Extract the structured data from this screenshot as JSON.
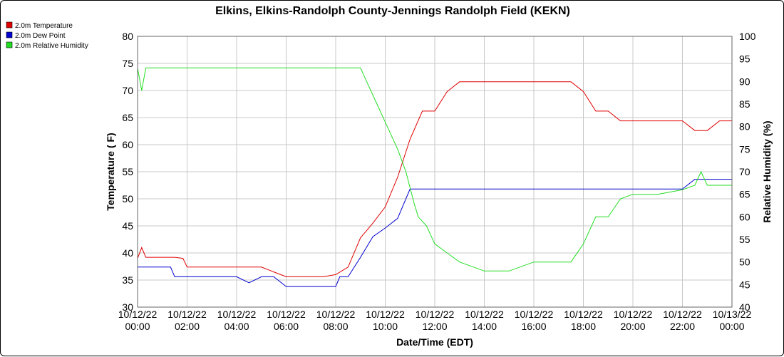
{
  "chart_data": {
    "type": "line",
    "title": "Elkins, Elkins-Randolph County-Jennings Randolph Field (KEKN)",
    "xlabel": "Date/Time (EDT)",
    "ylabel_left": "Temperature ( F)",
    "ylabel_right": "Relative Humidity (%)",
    "xlim": [
      "10/12/22 00:00",
      "10/13/22 00:00"
    ],
    "ylim_left": [
      30,
      80
    ],
    "ylim_right": [
      40,
      100
    ],
    "grid": true,
    "legend_position": "top-left",
    "x_ticks": [
      {
        "date": "10/12/22",
        "time": "00:00"
      },
      {
        "date": "10/12/22",
        "time": "02:00"
      },
      {
        "date": "10/12/22",
        "time": "04:00"
      },
      {
        "date": "10/12/22",
        "time": "06:00"
      },
      {
        "date": "10/12/22",
        "time": "08:00"
      },
      {
        "date": "10/12/22",
        "time": "10:00"
      },
      {
        "date": "10/12/22",
        "time": "12:00"
      },
      {
        "date": "10/12/22",
        "time": "14:00"
      },
      {
        "date": "10/12/22",
        "time": "16:00"
      },
      {
        "date": "10/12/22",
        "time": "18:00"
      },
      {
        "date": "10/12/22",
        "time": "20:00"
      },
      {
        "date": "10/12/22",
        "time": "22:00"
      },
      {
        "date": "10/13/22",
        "time": "00:00"
      }
    ],
    "y_ticks_left": [
      "30",
      "35",
      "40",
      "45",
      "50",
      "55",
      "60",
      "65",
      "70",
      "75",
      "80"
    ],
    "y_ticks_right": [
      "40",
      "45",
      "50",
      "55",
      "60",
      "65",
      "70",
      "75",
      "80",
      "85",
      "90",
      "95",
      "100"
    ],
    "series": [
      {
        "name": "2.0m Temperature",
        "color": "#e00000",
        "axis": "left",
        "x": [
          "10/12/22 00:00",
          "10/12/22 00:10",
          "10/12/22 00:20",
          "10/12/22 00:30",
          "10/12/22 01:00",
          "10/12/22 01:30",
          "10/12/22 01:50",
          "10/12/22 02:00",
          "10/12/22 03:00",
          "10/12/22 04:00",
          "10/12/22 05:00",
          "10/12/22 05:30",
          "10/12/22 06:00",
          "10/12/22 07:00",
          "10/12/22 07:30",
          "10/12/22 08:00",
          "10/12/22 08:30",
          "10/12/22 09:00",
          "10/12/22 09:30",
          "10/12/22 10:00",
          "10/12/22 10:30",
          "10/12/22 11:00",
          "10/12/22 11:30",
          "10/12/22 12:00",
          "10/12/22 12:30",
          "10/12/22 13:00",
          "10/12/22 14:00",
          "10/12/22 15:00",
          "10/12/22 16:00",
          "10/12/22 17:00",
          "10/12/22 17:30",
          "10/12/22 18:00",
          "10/12/22 18:30",
          "10/12/22 19:00",
          "10/12/22 19:30",
          "10/12/22 20:00",
          "10/12/22 21:00",
          "10/12/22 22:00",
          "10/12/22 22:30",
          "10/12/22 23:00",
          "10/12/22 23:30",
          "10/13/22 00:00"
        ],
        "y": [
          39.0,
          41.0,
          39.2,
          39.2,
          39.2,
          39.2,
          39.0,
          37.4,
          37.4,
          37.4,
          37.4,
          36.5,
          35.6,
          35.6,
          35.6,
          36.0,
          37.4,
          42.8,
          45.5,
          48.5,
          54.0,
          61.0,
          66.2,
          66.2,
          69.8,
          71.6,
          71.6,
          71.6,
          71.6,
          71.6,
          71.6,
          69.8,
          66.2,
          66.2,
          64.4,
          64.4,
          64.4,
          64.4,
          62.6,
          62.6,
          64.4,
          64.4
        ]
      },
      {
        "name": "2.0m Dew Point",
        "color": "#0000d0",
        "axis": "left",
        "x": [
          "10/12/22 00:00",
          "10/12/22 01:00",
          "10/12/22 01:20",
          "10/12/22 01:30",
          "10/12/22 02:00",
          "10/12/22 03:00",
          "10/12/22 04:00",
          "10/12/22 04:30",
          "10/12/22 05:00",
          "10/12/22 05:30",
          "10/12/22 06:00",
          "10/12/22 07:00",
          "10/12/22 08:00",
          "10/12/22 08:10",
          "10/12/22 08:30",
          "10/12/22 09:00",
          "10/12/22 09:30",
          "10/12/22 10:00",
          "10/12/22 10:30",
          "10/12/22 11:00",
          "10/12/22 11:30",
          "10/12/22 12:00",
          "10/12/22 13:00",
          "10/12/22 14:00",
          "10/12/22 15:00",
          "10/12/22 16:00",
          "10/12/22 17:00",
          "10/12/22 18:00",
          "10/12/22 19:00",
          "10/12/22 20:00",
          "10/12/22 21:00",
          "10/12/22 22:00",
          "10/12/22 22:30",
          "10/12/22 23:00",
          "10/13/22 00:00"
        ],
        "y": [
          37.4,
          37.4,
          37.4,
          35.6,
          35.6,
          35.6,
          35.6,
          34.5,
          35.6,
          35.6,
          33.8,
          33.8,
          33.8,
          35.6,
          35.6,
          39.2,
          43.0,
          44.6,
          46.4,
          51.8,
          51.8,
          51.8,
          51.8,
          51.8,
          51.8,
          51.8,
          51.8,
          51.8,
          51.8,
          51.8,
          51.8,
          51.8,
          53.6,
          53.6,
          53.6
        ]
      },
      {
        "name": "2.0m Relative Humidity",
        "color": "#22dd22",
        "axis": "right",
        "x": [
          "10/12/22 00:00",
          "10/12/22 00:10",
          "10/12/22 00:20",
          "10/12/22 01:00",
          "10/12/22 02:00",
          "10/12/22 04:00",
          "10/12/22 06:00",
          "10/12/22 08:00",
          "10/12/22 09:00",
          "10/12/22 09:20",
          "10/12/22 09:40",
          "10/12/22 10:00",
          "10/12/22 10:30",
          "10/12/22 10:50",
          "10/12/22 11:10",
          "10/12/22 11:20",
          "10/12/22 11:40",
          "10/12/22 12:00",
          "10/12/22 12:30",
          "10/12/22 13:00",
          "10/12/22 14:00",
          "10/12/22 15:00",
          "10/12/22 16:00",
          "10/12/22 17:00",
          "10/12/22 17:30",
          "10/12/22 18:00",
          "10/12/22 18:30",
          "10/12/22 19:00",
          "10/12/22 19:30",
          "10/12/22 20:00",
          "10/12/22 21:00",
          "10/12/22 22:00",
          "10/12/22 22:30",
          "10/12/22 22:45",
          "10/12/22 23:00",
          "10/13/22 00:00"
        ],
        "y": [
          93.0,
          88.0,
          93.0,
          93.0,
          93.0,
          93.0,
          93.0,
          93.0,
          93.0,
          89.0,
          85.0,
          81.0,
          75.0,
          70.0,
          63.0,
          60.0,
          58.0,
          54.0,
          52.0,
          50.0,
          48.0,
          48.0,
          50.0,
          50.0,
          50.0,
          54.0,
          60.0,
          60.0,
          64.0,
          65.0,
          65.0,
          66.0,
          67.0,
          70.0,
          67.0,
          67.0
        ]
      }
    ]
  }
}
